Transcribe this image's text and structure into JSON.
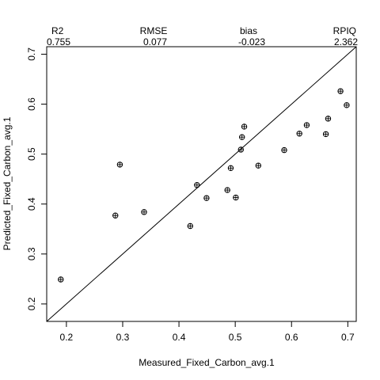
{
  "chart_data": {
    "type": "scatter",
    "title": "",
    "xlabel": "Measured_Fixed_Carbon_avg.1",
    "ylabel": "Predicted_Fixed_Carbon_avg.1",
    "xlim": [
      0.165,
      0.715
    ],
    "ylim": [
      0.165,
      0.715
    ],
    "xticks": [
      "0.2",
      "0.3",
      "0.4",
      "0.5",
      "0.6",
      "0.7"
    ],
    "yticks": [
      "0.2",
      "0.3",
      "0.4",
      "0.5",
      "0.6",
      "0.7"
    ],
    "reference_line": "1:1",
    "stats": [
      {
        "label": "R2",
        "value": "0.755"
      },
      {
        "label": "RMSE",
        "value": "0.077"
      },
      {
        "label": "bias",
        "value": "-0.023"
      },
      {
        "label": "RPIQ",
        "value": "2.362"
      }
    ],
    "points": [
      {
        "x": 0.19,
        "y": 0.249
      },
      {
        "x": 0.287,
        "y": 0.377
      },
      {
        "x": 0.295,
        "y": 0.479
      },
      {
        "x": 0.338,
        "y": 0.384
      },
      {
        "x": 0.42,
        "y": 0.356
      },
      {
        "x": 0.432,
        "y": 0.438
      },
      {
        "x": 0.449,
        "y": 0.412
      },
      {
        "x": 0.486,
        "y": 0.428
      },
      {
        "x": 0.492,
        "y": 0.472
      },
      {
        "x": 0.501,
        "y": 0.413
      },
      {
        "x": 0.51,
        "y": 0.509
      },
      {
        "x": 0.512,
        "y": 0.534
      },
      {
        "x": 0.516,
        "y": 0.555
      },
      {
        "x": 0.541,
        "y": 0.477
      },
      {
        "x": 0.587,
        "y": 0.508
      },
      {
        "x": 0.614,
        "y": 0.541
      },
      {
        "x": 0.627,
        "y": 0.558
      },
      {
        "x": 0.661,
        "y": 0.54
      },
      {
        "x": 0.665,
        "y": 0.571
      },
      {
        "x": 0.687,
        "y": 0.626
      },
      {
        "x": 0.698,
        "y": 0.598
      }
    ],
    "grid": false,
    "legend": "none"
  }
}
